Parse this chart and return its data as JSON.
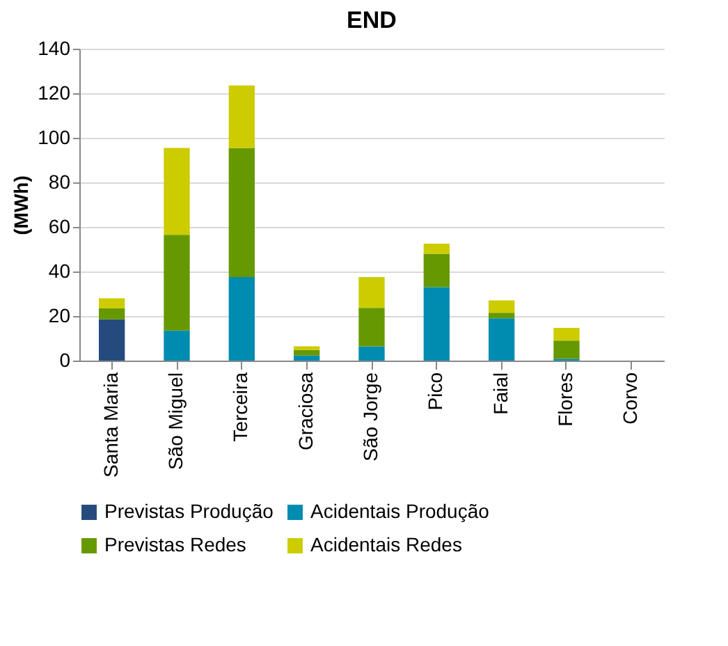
{
  "chart_data": {
    "type": "bar",
    "title": "END",
    "ylabel": "(MWh)",
    "stacked": true,
    "grid": "y",
    "legend": "bottom",
    "categories": [
      "Santa Maria",
      "São Miguel",
      "Terceira",
      "Graciosa",
      "São Jorge",
      "Pico",
      "Faial",
      "Flores",
      "Corvo"
    ],
    "series": [
      {
        "name": "Previstas Produção",
        "color": "#254a7d",
        "values": [
          18.5,
          0,
          0,
          0,
          0,
          0,
          0,
          0,
          0
        ]
      },
      {
        "name": "Acidentais Produção",
        "color": "#008bb0",
        "values": [
          0,
          13.5,
          37.5,
          2.3,
          6.4,
          33,
          19,
          0.8,
          0
        ]
      },
      {
        "name": "Previstas Redes",
        "color": "#669900",
        "values": [
          5,
          43,
          58,
          2.5,
          17.3,
          15,
          2.5,
          8.2,
          0
        ]
      },
      {
        "name": "Acidentais Redes",
        "color": "#cccc00",
        "values": [
          4.5,
          39,
          28,
          1.6,
          13.8,
          4.5,
          5.5,
          5.7,
          0
        ]
      }
    ],
    "ylim": [
      0,
      140
    ],
    "yticks": [
      0,
      20,
      40,
      60,
      80,
      100,
      120,
      140
    ]
  }
}
